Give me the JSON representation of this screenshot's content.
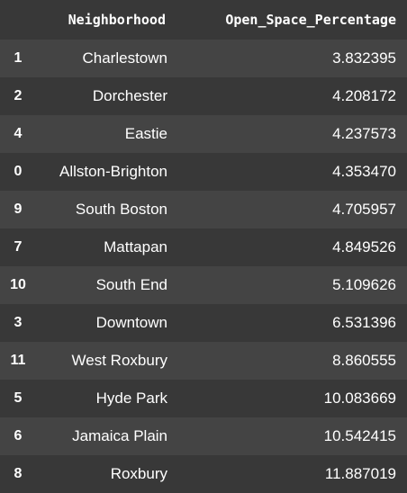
{
  "table": {
    "columns": {
      "index": "",
      "neighborhood": "Neighborhood",
      "open_space": "Open_Space_Percentage"
    },
    "rows": [
      {
        "index": "1",
        "neighborhood": "Charlestown",
        "open_space": "3.832395"
      },
      {
        "index": "2",
        "neighborhood": "Dorchester",
        "open_space": "4.208172"
      },
      {
        "index": "4",
        "neighborhood": "Eastie",
        "open_space": "4.237573"
      },
      {
        "index": "0",
        "neighborhood": "Allston-Brighton",
        "open_space": "4.353470"
      },
      {
        "index": "9",
        "neighborhood": "South Boston",
        "open_space": "4.705957"
      },
      {
        "index": "7",
        "neighborhood": "Mattapan",
        "open_space": "4.849526"
      },
      {
        "index": "10",
        "neighborhood": "South End",
        "open_space": "5.109626"
      },
      {
        "index": "3",
        "neighborhood": "Downtown",
        "open_space": "6.531396"
      },
      {
        "index": "11",
        "neighborhood": "West Roxbury",
        "open_space": "8.860555"
      },
      {
        "index": "5",
        "neighborhood": "Hyde Park",
        "open_space": "10.083669"
      },
      {
        "index": "6",
        "neighborhood": "Jamaica Plain",
        "open_space": "10.542415"
      },
      {
        "index": "8",
        "neighborhood": "Roxbury",
        "open_space": "11.887019"
      }
    ]
  },
  "colors": {
    "background": "#383838",
    "row_stripe": "#444444",
    "text": "#ffffff"
  }
}
